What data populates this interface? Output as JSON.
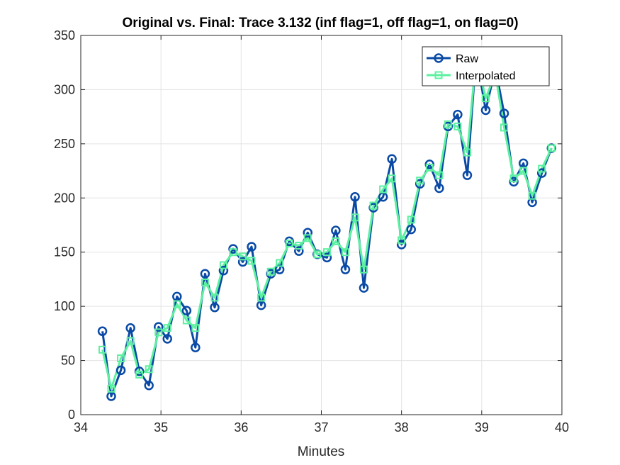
{
  "chart_data": {
    "type": "line",
    "title": "Original vs. Final: Trace 3.132 (inf flag=1, off flag=1, on flag=0)",
    "xlabel": "Minutes",
    "ylabel": "",
    "xlim": [
      34,
      40
    ],
    "ylim": [
      0,
      350
    ],
    "xticks": [
      "34",
      "35",
      "36",
      "37",
      "38",
      "39",
      "40"
    ],
    "yticks": [
      "0",
      "50",
      "100",
      "150",
      "200",
      "250",
      "300",
      "350"
    ],
    "grid": true,
    "legend_position": "top-right",
    "series": [
      {
        "name": "Raw",
        "color": "#0a4aa5",
        "marker": "circle",
        "x": [
          34.27,
          34.38,
          34.5,
          34.62,
          34.73,
          34.85,
          34.97,
          35.08,
          35.2,
          35.32,
          35.43,
          35.55,
          35.67,
          35.78,
          35.9,
          36.02,
          36.13,
          36.25,
          36.37,
          36.48,
          36.6,
          36.72,
          36.83,
          36.95,
          37.07,
          37.18,
          37.3,
          37.42,
          37.53,
          37.65,
          37.77,
          37.88,
          38.0,
          38.12,
          38.23,
          38.35,
          38.47,
          38.58,
          38.7,
          38.82,
          38.93,
          39.05,
          39.17,
          39.28,
          39.4,
          39.52,
          39.63,
          39.75,
          39.87
        ],
        "y": [
          77,
          17,
          41,
          80,
          40,
          27,
          81,
          70,
          109,
          96,
          62,
          130,
          99,
          133,
          153,
          141,
          155,
          101,
          130,
          134,
          160,
          151,
          168,
          148,
          145,
          170,
          134,
          201,
          117,
          191,
          201,
          236,
          157,
          171,
          213,
          231,
          209,
          266,
          277,
          221,
          332,
          281,
          320,
          278,
          215,
          232,
          196,
          223,
          246
        ]
      },
      {
        "name": "Interpolated",
        "color": "#5cf0a0",
        "marker": "square",
        "x": [
          34.27,
          34.38,
          34.5,
          34.62,
          34.73,
          34.85,
          34.97,
          35.08,
          35.2,
          35.32,
          35.43,
          35.55,
          35.67,
          35.78,
          35.9,
          36.02,
          36.13,
          36.25,
          36.37,
          36.48,
          36.6,
          36.72,
          36.83,
          36.95,
          37.07,
          37.18,
          37.3,
          37.42,
          37.53,
          37.65,
          37.77,
          37.88,
          38.0,
          38.12,
          38.23,
          38.35,
          38.47,
          38.58,
          38.7,
          38.82,
          38.93,
          39.05,
          39.17,
          39.28,
          39.4,
          39.52,
          39.63,
          39.75,
          39.87
        ],
        "y": [
          60,
          24,
          52,
          68,
          37,
          42,
          76,
          80,
          102,
          87,
          80,
          122,
          108,
          138,
          150,
          146,
          142,
          108,
          132,
          140,
          158,
          156,
          163,
          148,
          150,
          160,
          150,
          182,
          134,
          193,
          208,
          218,
          161,
          180,
          216,
          228,
          221,
          268,
          266,
          242,
          330,
          292,
          315,
          265,
          218,
          225,
          202,
          227,
          246
        ]
      }
    ]
  }
}
